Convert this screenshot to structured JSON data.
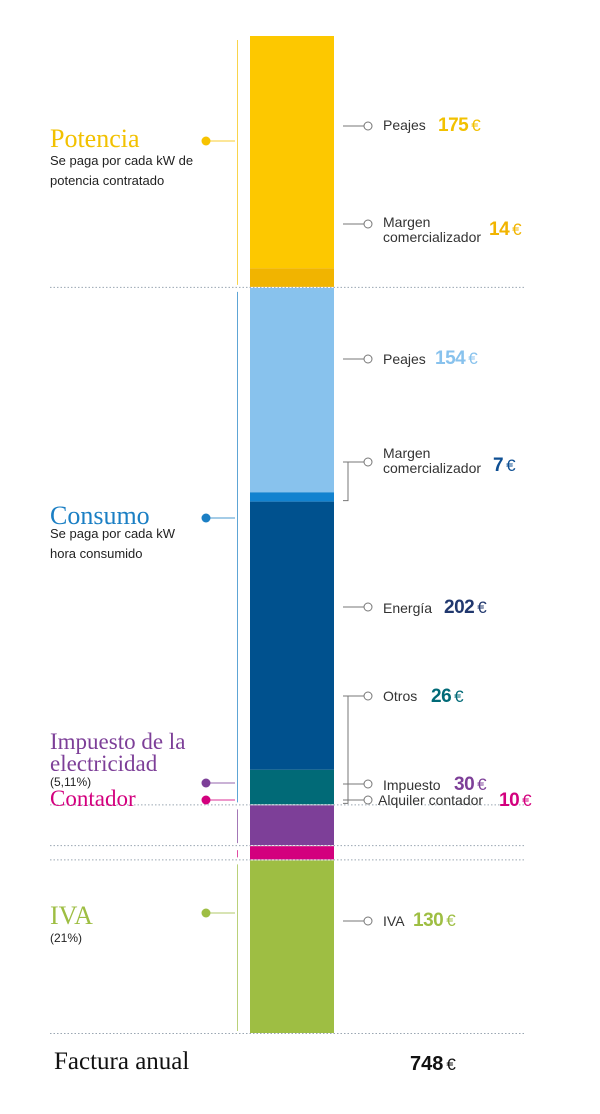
{
  "chart_data": {
    "type": "stacked-bar",
    "title": "Factura anual",
    "total": 748,
    "unit": "€",
    "groups": [
      {
        "name": "Potencia",
        "description": "Se paga por cada kW de potencia contratado",
        "color": "#f7c300",
        "segments": [
          {
            "label": "Peajes",
            "value": 175,
            "color": "#fdc800",
            "value_color": "#f2c100"
          },
          {
            "label": "Margen comercializador",
            "value": 14,
            "color": "#f1b400",
            "value_color": "#f1b400"
          }
        ]
      },
      {
        "name": "Consumo",
        "description": "Se paga por cada kW hora consumido",
        "color": "#1b7fc4",
        "segments": [
          {
            "label": "Peajes",
            "value": 154,
            "color": "#88c2ed",
            "value_color": "#88c2ed"
          },
          {
            "label": "Margen comercializador",
            "value": 7,
            "color": "#1282cf",
            "value_color": "#0e4f93"
          },
          {
            "label": "Energía",
            "value": 202,
            "color": "#00518e",
            "value_color": "#21386e"
          },
          {
            "label": "Otros",
            "value": 26,
            "color": "#016a77",
            "value_color": "#016a77"
          }
        ]
      },
      {
        "name": "Impuesto de la electricidad",
        "description": "(5,11%)",
        "color": "#7d3f98",
        "segments": [
          {
            "label": "Impuesto",
            "value": 30,
            "color": "#7d3f98",
            "value_color": "#7d3f98"
          }
        ]
      },
      {
        "name": "Contador",
        "description": "",
        "color": "#d3007e",
        "segments": [
          {
            "label": "Alquiler contador",
            "value": 10,
            "color": "#d3007e",
            "value_color": "#d3007e"
          }
        ]
      },
      {
        "name": "IVA",
        "description": "(21%)",
        "color": "#9ebe43",
        "segments": [
          {
            "label": "IVA",
            "value": 130,
            "color": "#9ebe43",
            "value_color": "#9ebe43"
          }
        ]
      }
    ]
  },
  "currency_symbol": "€",
  "footer": {
    "label": "Factura anual",
    "total": "748"
  }
}
